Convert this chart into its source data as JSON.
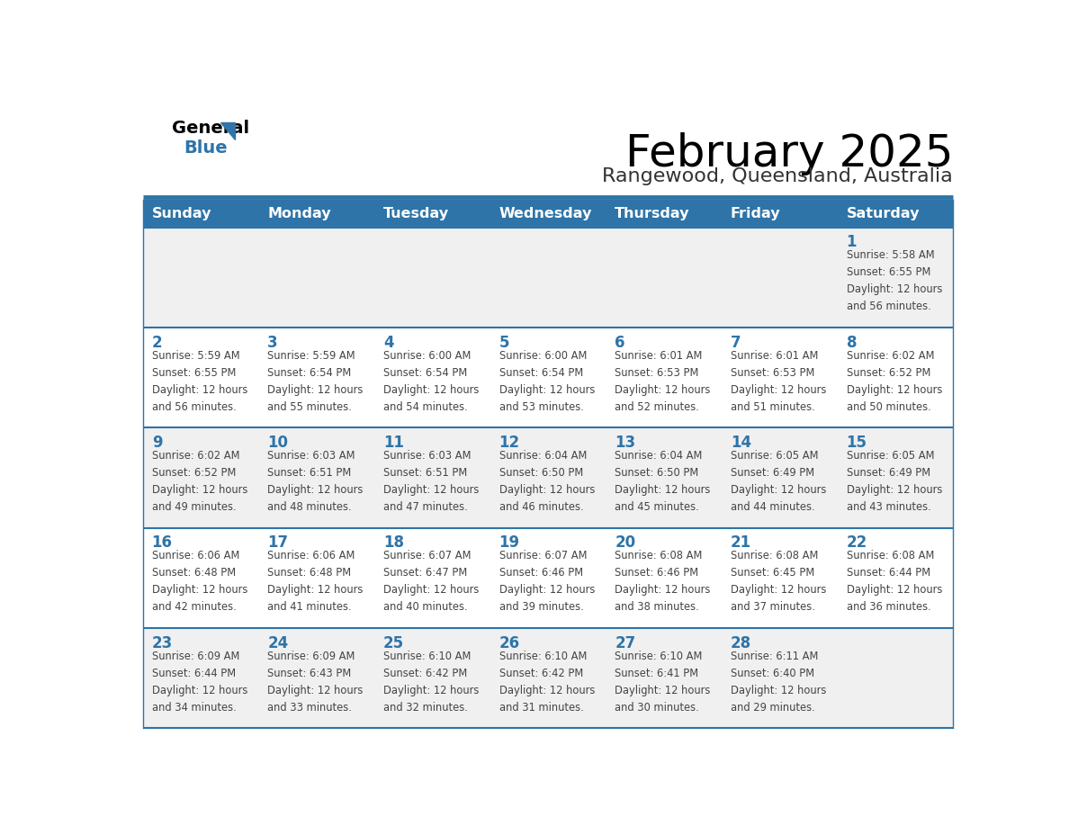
{
  "title": "February 2025",
  "subtitle": "Rangewood, Queensland, Australia",
  "header_bg_color": "#2E74A8",
  "header_text_color": "#FFFFFF",
  "day_names": [
    "Sunday",
    "Monday",
    "Tuesday",
    "Wednesday",
    "Thursday",
    "Friday",
    "Saturday"
  ],
  "separator_color": "#2E74A8",
  "day_num_color": "#2E74A8",
  "text_color": "#444444",
  "calendar_data": [
    [
      {
        "day": null,
        "info": null
      },
      {
        "day": null,
        "info": null
      },
      {
        "day": null,
        "info": null
      },
      {
        "day": null,
        "info": null
      },
      {
        "day": null,
        "info": null
      },
      {
        "day": null,
        "info": null
      },
      {
        "day": 1,
        "info": "Sunrise: 5:58 AM\nSunset: 6:55 PM\nDaylight: 12 hours\nand 56 minutes."
      }
    ],
    [
      {
        "day": 2,
        "info": "Sunrise: 5:59 AM\nSunset: 6:55 PM\nDaylight: 12 hours\nand 56 minutes."
      },
      {
        "day": 3,
        "info": "Sunrise: 5:59 AM\nSunset: 6:54 PM\nDaylight: 12 hours\nand 55 minutes."
      },
      {
        "day": 4,
        "info": "Sunrise: 6:00 AM\nSunset: 6:54 PM\nDaylight: 12 hours\nand 54 minutes."
      },
      {
        "day": 5,
        "info": "Sunrise: 6:00 AM\nSunset: 6:54 PM\nDaylight: 12 hours\nand 53 minutes."
      },
      {
        "day": 6,
        "info": "Sunrise: 6:01 AM\nSunset: 6:53 PM\nDaylight: 12 hours\nand 52 minutes."
      },
      {
        "day": 7,
        "info": "Sunrise: 6:01 AM\nSunset: 6:53 PM\nDaylight: 12 hours\nand 51 minutes."
      },
      {
        "day": 8,
        "info": "Sunrise: 6:02 AM\nSunset: 6:52 PM\nDaylight: 12 hours\nand 50 minutes."
      }
    ],
    [
      {
        "day": 9,
        "info": "Sunrise: 6:02 AM\nSunset: 6:52 PM\nDaylight: 12 hours\nand 49 minutes."
      },
      {
        "day": 10,
        "info": "Sunrise: 6:03 AM\nSunset: 6:51 PM\nDaylight: 12 hours\nand 48 minutes."
      },
      {
        "day": 11,
        "info": "Sunrise: 6:03 AM\nSunset: 6:51 PM\nDaylight: 12 hours\nand 47 minutes."
      },
      {
        "day": 12,
        "info": "Sunrise: 6:04 AM\nSunset: 6:50 PM\nDaylight: 12 hours\nand 46 minutes."
      },
      {
        "day": 13,
        "info": "Sunrise: 6:04 AM\nSunset: 6:50 PM\nDaylight: 12 hours\nand 45 minutes."
      },
      {
        "day": 14,
        "info": "Sunrise: 6:05 AM\nSunset: 6:49 PM\nDaylight: 12 hours\nand 44 minutes."
      },
      {
        "day": 15,
        "info": "Sunrise: 6:05 AM\nSunset: 6:49 PM\nDaylight: 12 hours\nand 43 minutes."
      }
    ],
    [
      {
        "day": 16,
        "info": "Sunrise: 6:06 AM\nSunset: 6:48 PM\nDaylight: 12 hours\nand 42 minutes."
      },
      {
        "day": 17,
        "info": "Sunrise: 6:06 AM\nSunset: 6:48 PM\nDaylight: 12 hours\nand 41 minutes."
      },
      {
        "day": 18,
        "info": "Sunrise: 6:07 AM\nSunset: 6:47 PM\nDaylight: 12 hours\nand 40 minutes."
      },
      {
        "day": 19,
        "info": "Sunrise: 6:07 AM\nSunset: 6:46 PM\nDaylight: 12 hours\nand 39 minutes."
      },
      {
        "day": 20,
        "info": "Sunrise: 6:08 AM\nSunset: 6:46 PM\nDaylight: 12 hours\nand 38 minutes."
      },
      {
        "day": 21,
        "info": "Sunrise: 6:08 AM\nSunset: 6:45 PM\nDaylight: 12 hours\nand 37 minutes."
      },
      {
        "day": 22,
        "info": "Sunrise: 6:08 AM\nSunset: 6:44 PM\nDaylight: 12 hours\nand 36 minutes."
      }
    ],
    [
      {
        "day": 23,
        "info": "Sunrise: 6:09 AM\nSunset: 6:44 PM\nDaylight: 12 hours\nand 34 minutes."
      },
      {
        "day": 24,
        "info": "Sunrise: 6:09 AM\nSunset: 6:43 PM\nDaylight: 12 hours\nand 33 minutes."
      },
      {
        "day": 25,
        "info": "Sunrise: 6:10 AM\nSunset: 6:42 PM\nDaylight: 12 hours\nand 32 minutes."
      },
      {
        "day": 26,
        "info": "Sunrise: 6:10 AM\nSunset: 6:42 PM\nDaylight: 12 hours\nand 31 minutes."
      },
      {
        "day": 27,
        "info": "Sunrise: 6:10 AM\nSunset: 6:41 PM\nDaylight: 12 hours\nand 30 minutes."
      },
      {
        "day": 28,
        "info": "Sunrise: 6:11 AM\nSunset: 6:40 PM\nDaylight: 12 hours\nand 29 minutes."
      },
      {
        "day": null,
        "info": null
      }
    ]
  ],
  "logo_triangle_color": "#2E74A8",
  "row_bg_colors": [
    "#F0F0F0",
    "#FFFFFF"
  ]
}
